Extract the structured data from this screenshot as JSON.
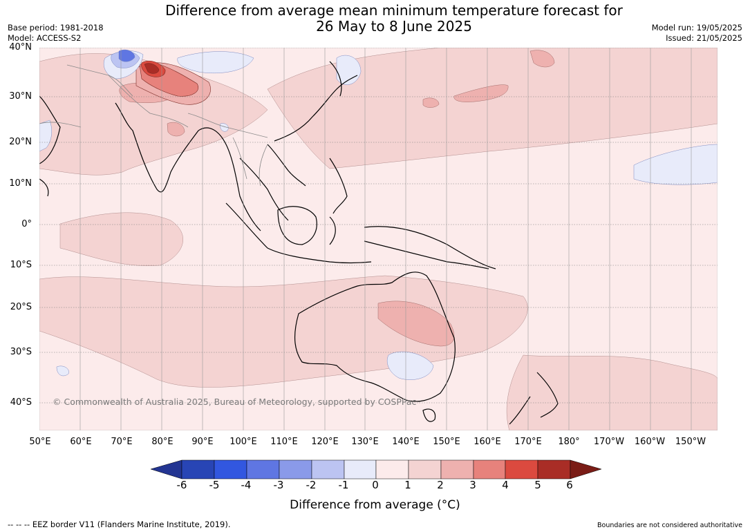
{
  "title_line1": "Difference from average mean minimum temperature forecast for",
  "title_line2": "26 May to 8 June 2025",
  "meta_left": {
    "base_period": "Base period: 1981-2018",
    "model": "Model: ACCESS-S2"
  },
  "meta_right": {
    "model_run": "Model run: 19/05/2025",
    "issued": "Issued: 21/05/2025"
  },
  "lat_labels": [
    "40°N",
    "30°N",
    "20°N",
    "10°N",
    "0°",
    "10°S",
    "20°S",
    "30°S",
    "40°S"
  ],
  "lon_labels": [
    "50°E",
    "60°E",
    "70°E",
    "80°E",
    "90°E",
    "100°E",
    "110°E",
    "120°E",
    "130°E",
    "140°E",
    "150°E",
    "160°E",
    "170°E",
    "180°",
    "170°W",
    "160°W",
    "150°W"
  ],
  "copyright": "© Commonwealth of Australia 2025, Bureau of Meteorology, supported by COSPPac",
  "colorbar": {
    "labels": [
      "-6",
      "-5",
      "-4",
      "-3",
      "-2",
      "-1",
      "0",
      "1",
      "2",
      "3",
      "4",
      "5",
      "6"
    ],
    "colors": [
      "#233592",
      "#2845b5",
      "#3257e0",
      "#5f76e2",
      "#8a9ae9",
      "#bcc4f2",
      "#e8ebfa",
      "#fcebeb",
      "#f4d3d2",
      "#eeb1af",
      "#e7827c",
      "#db4a3f",
      "#a92d26",
      "#7a1c16"
    ],
    "title": "Difference from average (°C)"
  },
  "footer_left": "--  --  -- EEZ border V11 (Flanders Marine Institute, 2019).",
  "footer_right": "Boundaries are not considered authoritative"
}
